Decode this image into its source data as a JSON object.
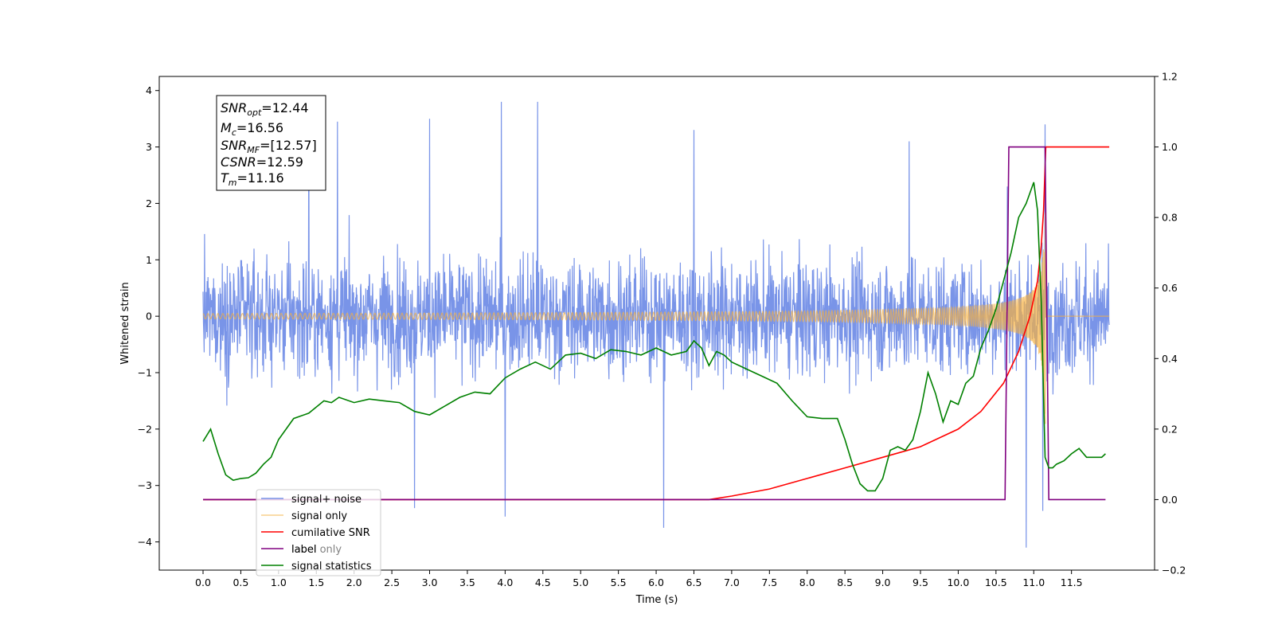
{
  "chart_data": {
    "type": "line",
    "xlabel": "Time (s)",
    "ylabel_left": "Whitened strain",
    "ylabel_right": "",
    "xlim": [
      -0.58,
      12.6
    ],
    "ylim_left": [
      -4.5,
      4.25
    ],
    "ylim_right": [
      -0.2,
      1.2
    ],
    "x_ticks": [
      "0.0",
      "0.5",
      "1.0",
      "1.5",
      "2.0",
      "2.5",
      "3.0",
      "3.5",
      "4.0",
      "4.5",
      "5.0",
      "5.5",
      "6.0",
      "6.5",
      "7.0",
      "7.5",
      "8.0",
      "8.5",
      "9.0",
      "9.5",
      "10.0",
      "10.5",
      "11.0",
      "11.5"
    ],
    "x_tick_values": [
      0,
      0.5,
      1,
      1.5,
      2,
      2.5,
      3,
      3.5,
      4,
      4.5,
      5,
      5.5,
      6,
      6.5,
      7,
      7.5,
      8,
      8.5,
      9,
      9.5,
      10,
      10.5,
      11,
      11.5
    ],
    "y_left_ticks": [
      "4",
      "3",
      "2",
      "1",
      "0",
      "−1",
      "−2",
      "−3",
      "−4"
    ],
    "y_left_tick_values": [
      4,
      3,
      2,
      1,
      0,
      -1,
      -2,
      -3,
      -4
    ],
    "y_right_ticks": [
      "1.2",
      "1.0",
      "0.8",
      "0.6",
      "0.4",
      "0.2",
      "0.0",
      "−0.2"
    ],
    "y_right_tick_values": [
      1.2,
      1.0,
      0.8,
      0.6,
      0.4,
      0.2,
      0.0,
      -0.2
    ],
    "grid": false,
    "legend_position": "lower-left",
    "series": [
      {
        "name": "signal+ noise",
        "axis": "left",
        "color": "#6a88e6",
        "kind": "noise",
        "x_range": [
          0,
          12.0
        ],
        "typical_range": [
          -2.0,
          2.2
        ],
        "extremes": [
          [
            1.4,
            3.6
          ],
          [
            1.78,
            3.45
          ],
          [
            3.0,
            3.5
          ],
          [
            3.95,
            3.8
          ],
          [
            4.43,
            3.8
          ],
          [
            6.1,
            -3.75
          ],
          [
            10.65,
            2.3
          ],
          [
            10.9,
            -4.1
          ],
          [
            11.15,
            3.4
          ],
          [
            11.12,
            -3.45
          ],
          [
            6.5,
            3.3
          ],
          [
            9.35,
            3.1
          ],
          [
            4.0,
            -3.55
          ],
          [
            2.8,
            -3.4
          ]
        ]
      },
      {
        "name": "signal only",
        "axis": "left",
        "color": "#f5b041",
        "kind": "chirp",
        "x_range": [
          0,
          12.0
        ],
        "merger_time": 11.16,
        "peak_amplitude": 2.0
      },
      {
        "name": "cumilative SNR",
        "axis": "right",
        "color": "#ff0000",
        "x": [
          0,
          6.7,
          7.0,
          7.5,
          8.0,
          8.5,
          9.0,
          9.5,
          10.0,
          10.3,
          10.6,
          10.8,
          10.95,
          11.05,
          11.1,
          11.13,
          11.16,
          11.2,
          12.0
        ],
        "y": [
          0.0,
          0.0,
          0.01,
          0.03,
          0.06,
          0.09,
          0.12,
          0.15,
          0.2,
          0.25,
          0.33,
          0.42,
          0.52,
          0.62,
          0.72,
          0.82,
          1.0,
          1.0,
          1.0
        ]
      },
      {
        "name": "label",
        "axis": "right",
        "color": "#800080",
        "x": [
          0,
          10.62,
          10.67,
          11.15,
          11.2,
          11.95
        ],
        "y": [
          0,
          0,
          1,
          1,
          0,
          0
        ]
      },
      {
        "name": "signal statistics",
        "axis": "right",
        "color": "#008000",
        "x": [
          0,
          0.1,
          0.2,
          0.3,
          0.4,
          0.5,
          0.6,
          0.7,
          0.8,
          0.9,
          1.0,
          1.2,
          1.4,
          1.6,
          1.7,
          1.8,
          2.0,
          2.2,
          2.4,
          2.6,
          2.8,
          3.0,
          3.2,
          3.4,
          3.6,
          3.8,
          4.0,
          4.2,
          4.4,
          4.6,
          4.8,
          5.0,
          5.2,
          5.4,
          5.6,
          5.8,
          6.0,
          6.2,
          6.4,
          6.5,
          6.6,
          6.7,
          6.8,
          6.9,
          7.0,
          7.2,
          7.4,
          7.6,
          7.8,
          8.0,
          8.2,
          8.4,
          8.5,
          8.6,
          8.7,
          8.8,
          8.9,
          9.0,
          9.1,
          9.2,
          9.3,
          9.4,
          9.5,
          9.6,
          9.7,
          9.8,
          9.9,
          10.0,
          10.1,
          10.2,
          10.3,
          10.4,
          10.5,
          10.6,
          10.7,
          10.8,
          10.9,
          11.0,
          11.05,
          11.1,
          11.15,
          11.2,
          11.25,
          11.3,
          11.4,
          11.5,
          11.6,
          11.7,
          11.8,
          11.9,
          11.95
        ],
        "y": [
          0.165,
          0.2,
          0.13,
          0.07,
          0.055,
          0.06,
          0.062,
          0.075,
          0.1,
          0.12,
          0.17,
          0.23,
          0.245,
          0.28,
          0.275,
          0.29,
          0.275,
          0.285,
          0.28,
          0.275,
          0.25,
          0.24,
          0.265,
          0.29,
          0.305,
          0.3,
          0.345,
          0.37,
          0.39,
          0.37,
          0.41,
          0.415,
          0.4,
          0.425,
          0.42,
          0.41,
          0.43,
          0.41,
          0.42,
          0.45,
          0.43,
          0.38,
          0.42,
          0.41,
          0.39,
          0.37,
          0.35,
          0.33,
          0.28,
          0.235,
          0.23,
          0.23,
          0.17,
          0.1,
          0.045,
          0.025,
          0.025,
          0.06,
          0.14,
          0.15,
          0.14,
          0.17,
          0.25,
          0.36,
          0.3,
          0.22,
          0.28,
          0.27,
          0.33,
          0.35,
          0.43,
          0.48,
          0.54,
          0.62,
          0.7,
          0.8,
          0.84,
          0.9,
          0.82,
          0.56,
          0.12,
          0.09,
          0.09,
          0.1,
          0.11,
          0.13,
          0.145,
          0.12,
          0.12,
          0.12,
          0.13
        ]
      }
    ],
    "hidden_legend_entry": "label only"
  },
  "info_box": {
    "lines": [
      {
        "main": "SNR",
        "sub": "opt",
        "value": "=12.44"
      },
      {
        "main": "M",
        "sub": "c",
        "value": "=16.56"
      },
      {
        "main": "SNR",
        "sub": "MF",
        "value": "=[12.57]"
      },
      {
        "main": "CSNR",
        "sub": "",
        "value": "=12.59"
      },
      {
        "main": "T",
        "sub": "m",
        "value": "=11.16"
      }
    ]
  },
  "legend": {
    "items": [
      {
        "label": "signal+ noise",
        "color": "#6a88e6",
        "alpha": 0.9
      },
      {
        "label": "signal only",
        "color": "#f5b041",
        "alpha": 0.6
      },
      {
        "label": "cumilative SNR",
        "color": "#ff0000",
        "alpha": 1
      },
      {
        "label": "label",
        "color": "#800080",
        "alpha": 1
      },
      {
        "label": "signal statistics",
        "color": "#008000",
        "alpha": 1
      }
    ],
    "overlap_label": "label only"
  }
}
